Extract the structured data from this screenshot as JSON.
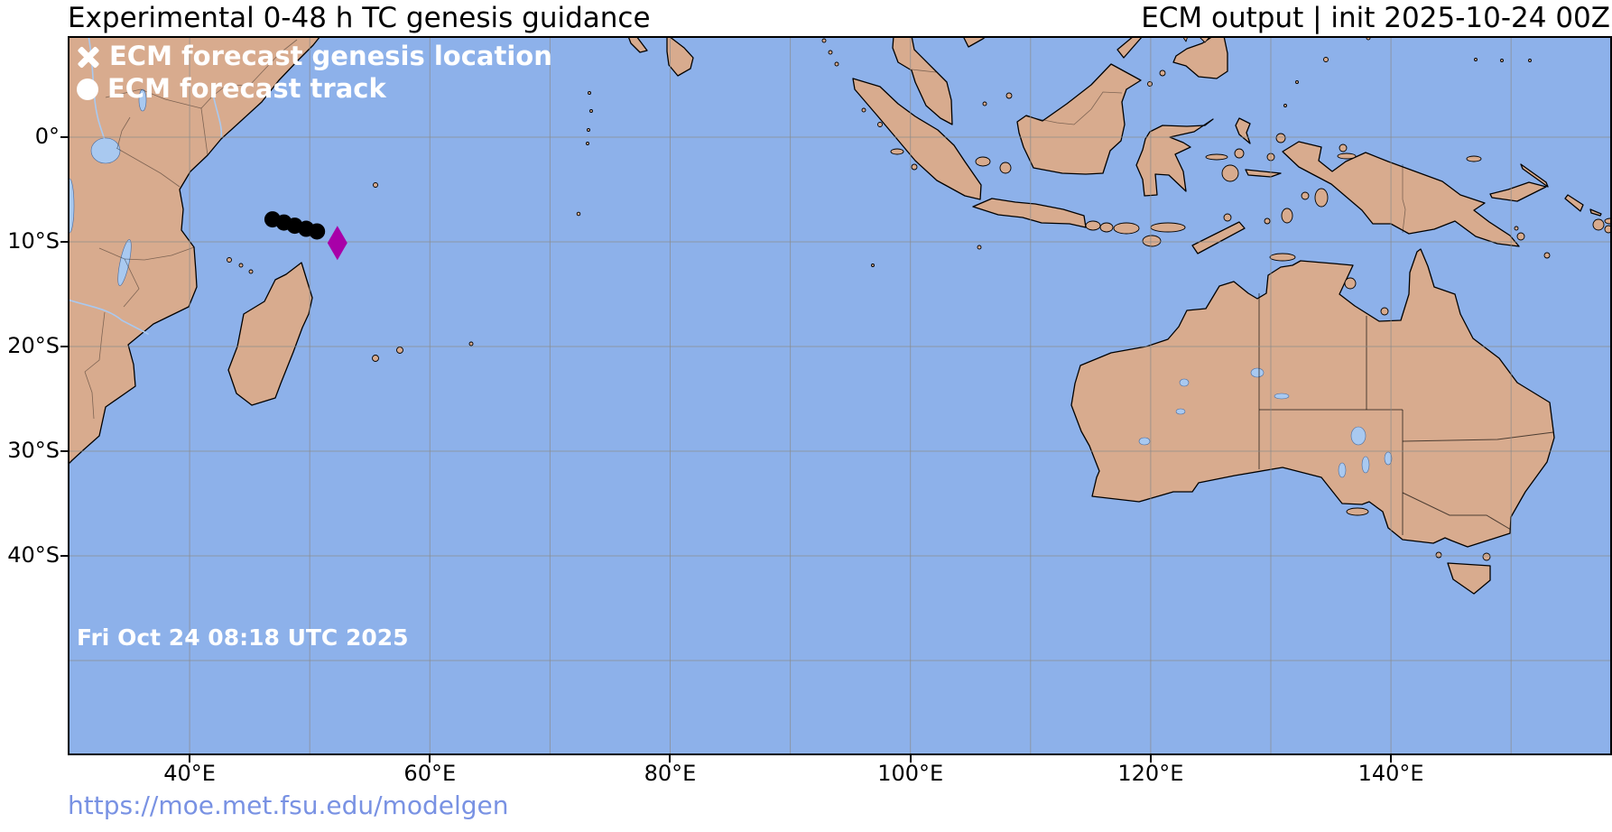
{
  "header": {
    "title_left": "Experimental 0-48 h TC genesis guidance",
    "title_right": "ECM output | init 2025-10-24 00Z"
  },
  "legend": {
    "genesis_symbol": "✕",
    "genesis_label": "ECM forecast genesis location",
    "track_symbol": "●",
    "track_label": "ECM forecast track"
  },
  "map": {
    "timestamp": "Fri Oct 24 08:18 UTC 2025",
    "extent": {
      "lon_min": 29.85,
      "lon_max": 158.4,
      "lat_min": -59.05,
      "lat_max": 9.66
    },
    "grid": {
      "lons": [
        40,
        50,
        60,
        70,
        80,
        90,
        100,
        110,
        120,
        130,
        140,
        150
      ],
      "lats": [
        0,
        -10,
        -20,
        -30,
        -40,
        -50
      ]
    },
    "x_ticks": [
      {
        "lon": 40,
        "label": "40°E"
      },
      {
        "lon": 60,
        "label": "60°E"
      },
      {
        "lon": 80,
        "label": "80°E"
      },
      {
        "lon": 100,
        "label": "100°E"
      },
      {
        "lon": 120,
        "label": "120°E"
      },
      {
        "lon": 140,
        "label": "140°E"
      }
    ],
    "y_ticks": [
      {
        "lat": 0,
        "label": "0°"
      },
      {
        "lat": -10,
        "label": "10°S"
      },
      {
        "lat": -20,
        "label": "20°S"
      },
      {
        "lat": -30,
        "label": "30°S"
      },
      {
        "lat": -40,
        "label": "40°S"
      }
    ],
    "colors": {
      "ocean": "#8db1ea",
      "land": "#d8ab8e",
      "lake": "#a9c9f0",
      "grid": "#8a8a8a",
      "coast": "#000000",
      "track_marker": "#000000",
      "genesis_marker": "#a800a8"
    },
    "track_marker_radius": 9,
    "genesis_marker_size": {
      "half_width": 11,
      "half_height": 19
    },
    "genesis_marker": {
      "lon": 52.3,
      "lat": -10.1
    },
    "track_points": [
      {
        "lon": 46.9,
        "lat": -7.85
      },
      {
        "lon": 47.85,
        "lat": -8.15
      },
      {
        "lon": 48.75,
        "lat": -8.45
      },
      {
        "lon": 49.7,
        "lat": -8.75
      },
      {
        "lon": 50.6,
        "lat": -9.0
      }
    ]
  },
  "footer": {
    "url_text": "https://moe.met.fsu.edu/modelgen"
  }
}
